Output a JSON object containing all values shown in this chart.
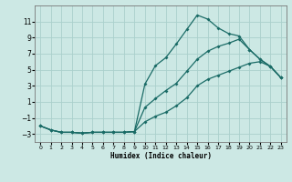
{
  "xlabel": "Humidex (Indice chaleur)",
  "bg_color": "#cce8e4",
  "grid_color": "#aad0cc",
  "line_color": "#1a6b66",
  "x_values": [
    0,
    1,
    2,
    3,
    4,
    5,
    6,
    7,
    8,
    9,
    10,
    11,
    12,
    13,
    14,
    15,
    16,
    17,
    18,
    19,
    20,
    21,
    22,
    23
  ],
  "curve_max": [
    -2.0,
    -2.5,
    -2.8,
    -2.8,
    -2.9,
    -2.8,
    -2.8,
    -2.8,
    -2.8,
    -2.7,
    3.2,
    5.5,
    6.5,
    8.2,
    10.0,
    11.8,
    11.3,
    10.2,
    9.5,
    9.2,
    7.5,
    6.3,
    5.4,
    4.0
  ],
  "curve_mid": [
    -2.0,
    -2.5,
    -2.8,
    -2.8,
    -2.9,
    -2.8,
    -2.8,
    -2.8,
    -2.8,
    -2.7,
    0.3,
    1.4,
    2.4,
    3.3,
    4.8,
    6.3,
    7.3,
    7.9,
    8.3,
    8.8,
    7.5,
    6.3,
    5.4,
    4.0
  ],
  "curve_min": [
    -2.0,
    -2.5,
    -2.8,
    -2.8,
    -2.9,
    -2.8,
    -2.8,
    -2.8,
    -2.8,
    -2.7,
    -1.5,
    -0.8,
    -0.3,
    0.5,
    1.5,
    3.0,
    3.8,
    4.3,
    4.8,
    5.3,
    5.8,
    6.0,
    5.4,
    4.0
  ],
  "ylim": [
    -4,
    13
  ],
  "yticks": [
    -3,
    -1,
    1,
    3,
    5,
    7,
    9,
    11
  ],
  "xlim": [
    -0.5,
    23.5
  ]
}
